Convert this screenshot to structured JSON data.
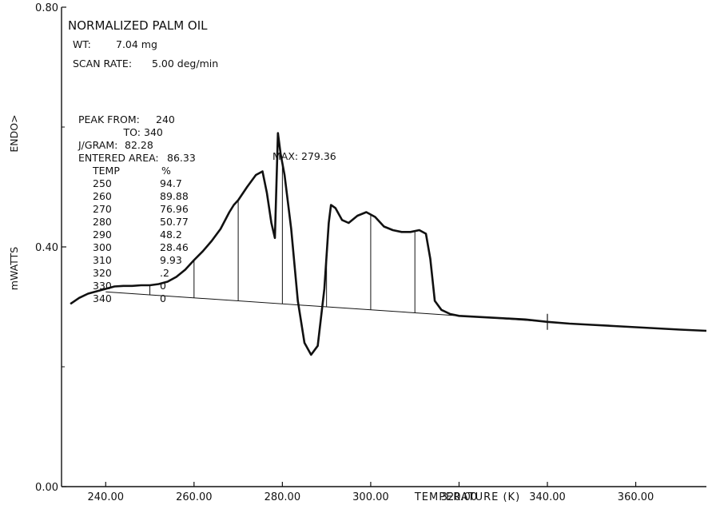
{
  "header": {
    "title": "NORMALIZED PALM OIL",
    "wt_label": "WT:",
    "wt_value": "7.04 mg",
    "scan_label": "SCAN RATE:",
    "scan_value": "5.00 deg/min"
  },
  "peak_info": {
    "from_label": "PEAK FROM:",
    "from_value": "240",
    "to_label": "TO:",
    "to_value": "340",
    "jgram_label": "J/GRAM:",
    "jgram_value": "82.28",
    "area_label": "ENTERED AREA:",
    "area_value": "86.33",
    "max_label": "MAX:",
    "max_value": "279.36"
  },
  "table": {
    "headers": [
      "TEMP",
      "%"
    ],
    "rows": [
      [
        "250",
        "94.7"
      ],
      [
        "260",
        "89.88"
      ],
      [
        "270",
        "76.96"
      ],
      [
        "280",
        "50.77"
      ],
      [
        "290",
        "48.2"
      ],
      [
        "300",
        "28.46"
      ],
      [
        "310",
        "9.93"
      ],
      [
        "320",
        ".2"
      ],
      [
        "330",
        "0"
      ],
      [
        "340",
        "0"
      ]
    ]
  },
  "chart_data": {
    "type": "line",
    "xlabel": "TEMPERATURE (K)",
    "ylabel": "mWATTS",
    "ylabel_secondary": "ENDO>",
    "xlim": [
      230,
      376
    ],
    "ylim": [
      0.0,
      0.8
    ],
    "x_ticks": [
      "240.00",
      "260.00",
      "280.00",
      "300.00",
      "320.00",
      "340.00",
      "360.00"
    ],
    "x_tick_values": [
      240,
      260,
      280,
      300,
      320,
      340,
      360
    ],
    "y_ticks": [
      "0.00",
      "0.40",
      "0.80"
    ],
    "y_tick_values": [
      0.0,
      0.4,
      0.8
    ],
    "grid": false,
    "series": [
      {
        "x": [
          232,
          234,
          236,
          238,
          240,
          242,
          244,
          246,
          248,
          250,
          252,
          254,
          256,
          258,
          260,
          262,
          264,
          266,
          268,
          269,
          270,
          272,
          274,
          275.5,
          276.5,
          277.5,
          278.3,
          279,
          279.6,
          280.5,
          282,
          283.5,
          285,
          286.5,
          288,
          289.5,
          290.5,
          291,
          292,
          293.5,
          295,
          297,
          299,
          301,
          303,
          305,
          307,
          309,
          311,
          312.5,
          313.5,
          314.5,
          316,
          318,
          320,
          325,
          330,
          335,
          340,
          345,
          350,
          355,
          360,
          365,
          370,
          376
        ],
        "y": [
          0.305,
          0.315,
          0.322,
          0.326,
          0.33,
          0.334,
          0.335,
          0.335,
          0.336,
          0.336,
          0.338,
          0.342,
          0.35,
          0.362,
          0.378,
          0.393,
          0.41,
          0.43,
          0.458,
          0.47,
          0.478,
          0.5,
          0.52,
          0.526,
          0.49,
          0.44,
          0.415,
          0.59,
          0.555,
          0.52,
          0.43,
          0.31,
          0.24,
          0.22,
          0.235,
          0.33,
          0.44,
          0.47,
          0.465,
          0.445,
          0.44,
          0.452,
          0.458,
          0.45,
          0.434,
          0.428,
          0.425,
          0.425,
          0.428,
          0.422,
          0.38,
          0.31,
          0.295,
          0.288,
          0.285,
          0.283,
          0.281,
          0.279,
          0.275,
          0.272,
          0.27,
          0.268,
          0.266,
          0.264,
          0.262,
          0.26
        ]
      }
    ],
    "baseline": {
      "x": [
        240,
        340
      ],
      "y": [
        0.325,
        0.275
      ]
    },
    "partition_temps": [
      250,
      260,
      270,
      280,
      290,
      300,
      310,
      320,
      330,
      340
    ]
  }
}
